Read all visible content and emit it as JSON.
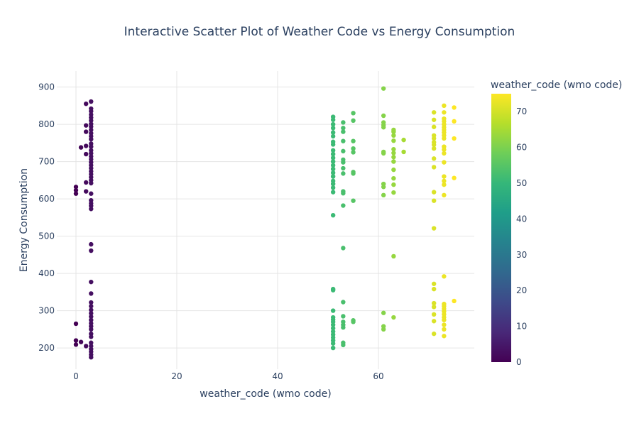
{
  "chart_data": {
    "type": "scatter",
    "title": "Interactive Scatter Plot of Weather Code vs Energy Consumption",
    "xlabel": "weather_code (wmo code)",
    "ylabel": "Energy Consumption",
    "xlim": [
      -3.8,
      79
    ],
    "ylim": [
      143,
      943
    ],
    "x_ticks": [
      0,
      20,
      40,
      60
    ],
    "y_ticks": [
      200,
      300,
      400,
      500,
      600,
      700,
      800,
      900
    ],
    "grid": true,
    "colorscale": "viridis",
    "colorbar": {
      "title": "weather_code (wmo code)",
      "range": [
        0,
        75
      ],
      "ticks": [
        0,
        10,
        20,
        30,
        40,
        50,
        60,
        70
      ]
    },
    "points": [
      {
        "x": 0,
        "y": 632
      },
      {
        "x": 0,
        "y": 623
      },
      {
        "x": 0,
        "y": 614
      },
      {
        "x": 0,
        "y": 265
      },
      {
        "x": 0,
        "y": 220
      },
      {
        "x": 0,
        "y": 209
      },
      {
        "x": 1,
        "y": 738
      },
      {
        "x": 1,
        "y": 216
      },
      {
        "x": 2,
        "y": 855
      },
      {
        "x": 2,
        "y": 797
      },
      {
        "x": 2,
        "y": 780
      },
      {
        "x": 2,
        "y": 742
      },
      {
        "x": 2,
        "y": 720
      },
      {
        "x": 2,
        "y": 644
      },
      {
        "x": 2,
        "y": 620
      },
      {
        "x": 2,
        "y": 205
      },
      {
        "x": 3,
        "y": 861
      },
      {
        "x": 3,
        "y": 842
      },
      {
        "x": 3,
        "y": 835
      },
      {
        "x": 3,
        "y": 826
      },
      {
        "x": 3,
        "y": 818
      },
      {
        "x": 3,
        "y": 810
      },
      {
        "x": 3,
        "y": 801
      },
      {
        "x": 3,
        "y": 794
      },
      {
        "x": 3,
        "y": 785
      },
      {
        "x": 3,
        "y": 776
      },
      {
        "x": 3,
        "y": 768
      },
      {
        "x": 3,
        "y": 760
      },
      {
        "x": 3,
        "y": 748
      },
      {
        "x": 3,
        "y": 740
      },
      {
        "x": 3,
        "y": 730
      },
      {
        "x": 3,
        "y": 722
      },
      {
        "x": 3,
        "y": 714
      },
      {
        "x": 3,
        "y": 706
      },
      {
        "x": 3,
        "y": 698
      },
      {
        "x": 3,
        "y": 690
      },
      {
        "x": 3,
        "y": 682
      },
      {
        "x": 3,
        "y": 674
      },
      {
        "x": 3,
        "y": 666
      },
      {
        "x": 3,
        "y": 658
      },
      {
        "x": 3,
        "y": 650
      },
      {
        "x": 3,
        "y": 642
      },
      {
        "x": 3,
        "y": 614
      },
      {
        "x": 3,
        "y": 596
      },
      {
        "x": 3,
        "y": 588
      },
      {
        "x": 3,
        "y": 581
      },
      {
        "x": 3,
        "y": 573
      },
      {
        "x": 3,
        "y": 478
      },
      {
        "x": 3,
        "y": 461
      },
      {
        "x": 3,
        "y": 377
      },
      {
        "x": 3,
        "y": 346
      },
      {
        "x": 3,
        "y": 322
      },
      {
        "x": 3,
        "y": 312
      },
      {
        "x": 3,
        "y": 302
      },
      {
        "x": 3,
        "y": 293
      },
      {
        "x": 3,
        "y": 284
      },
      {
        "x": 3,
        "y": 275
      },
      {
        "x": 3,
        "y": 266
      },
      {
        "x": 3,
        "y": 258
      },
      {
        "x": 3,
        "y": 250
      },
      {
        "x": 3,
        "y": 238
      },
      {
        "x": 3,
        "y": 230
      },
      {
        "x": 3,
        "y": 214
      },
      {
        "x": 3,
        "y": 205
      },
      {
        "x": 3,
        "y": 197
      },
      {
        "x": 3,
        "y": 190
      },
      {
        "x": 3,
        "y": 182
      },
      {
        "x": 3,
        "y": 175
      },
      {
        "x": 51,
        "y": 820
      },
      {
        "x": 51,
        "y": 812
      },
      {
        "x": 51,
        "y": 800
      },
      {
        "x": 51,
        "y": 790
      },
      {
        "x": 51,
        "y": 778
      },
      {
        "x": 51,
        "y": 768
      },
      {
        "x": 51,
        "y": 753
      },
      {
        "x": 51,
        "y": 746
      },
      {
        "x": 51,
        "y": 730
      },
      {
        "x": 51,
        "y": 720
      },
      {
        "x": 51,
        "y": 710
      },
      {
        "x": 51,
        "y": 700
      },
      {
        "x": 51,
        "y": 690
      },
      {
        "x": 51,
        "y": 680
      },
      {
        "x": 51,
        "y": 670
      },
      {
        "x": 51,
        "y": 660
      },
      {
        "x": 51,
        "y": 648
      },
      {
        "x": 51,
        "y": 640
      },
      {
        "x": 51,
        "y": 630
      },
      {
        "x": 51,
        "y": 618
      },
      {
        "x": 51,
        "y": 556
      },
      {
        "x": 51,
        "y": 358
      },
      {
        "x": 51,
        "y": 355
      },
      {
        "x": 51,
        "y": 300
      },
      {
        "x": 51,
        "y": 282
      },
      {
        "x": 51,
        "y": 276
      },
      {
        "x": 51,
        "y": 270
      },
      {
        "x": 51,
        "y": 262
      },
      {
        "x": 51,
        "y": 253
      },
      {
        "x": 51,
        "y": 244
      },
      {
        "x": 51,
        "y": 236
      },
      {
        "x": 51,
        "y": 228
      },
      {
        "x": 51,
        "y": 220
      },
      {
        "x": 51,
        "y": 212
      },
      {
        "x": 51,
        "y": 200
      },
      {
        "x": 53,
        "y": 805
      },
      {
        "x": 53,
        "y": 790
      },
      {
        "x": 53,
        "y": 780
      },
      {
        "x": 53,
        "y": 755
      },
      {
        "x": 53,
        "y": 728
      },
      {
        "x": 53,
        "y": 705
      },
      {
        "x": 53,
        "y": 698
      },
      {
        "x": 53,
        "y": 682
      },
      {
        "x": 53,
        "y": 668
      },
      {
        "x": 53,
        "y": 620
      },
      {
        "x": 53,
        "y": 615
      },
      {
        "x": 53,
        "y": 582
      },
      {
        "x": 53,
        "y": 468
      },
      {
        "x": 53,
        "y": 323
      },
      {
        "x": 53,
        "y": 285
      },
      {
        "x": 53,
        "y": 270
      },
      {
        "x": 53,
        "y": 262
      },
      {
        "x": 53,
        "y": 255
      },
      {
        "x": 53,
        "y": 214
      },
      {
        "x": 53,
        "y": 208
      },
      {
        "x": 55,
        "y": 830
      },
      {
        "x": 55,
        "y": 810
      },
      {
        "x": 55,
        "y": 755
      },
      {
        "x": 55,
        "y": 735
      },
      {
        "x": 55,
        "y": 725
      },
      {
        "x": 55,
        "y": 672
      },
      {
        "x": 55,
        "y": 668
      },
      {
        "x": 55,
        "y": 595
      },
      {
        "x": 55,
        "y": 274
      },
      {
        "x": 55,
        "y": 270
      },
      {
        "x": 61,
        "y": 896
      },
      {
        "x": 61,
        "y": 823
      },
      {
        "x": 61,
        "y": 805
      },
      {
        "x": 61,
        "y": 798
      },
      {
        "x": 61,
        "y": 792
      },
      {
        "x": 61,
        "y": 726
      },
      {
        "x": 61,
        "y": 722
      },
      {
        "x": 61,
        "y": 640
      },
      {
        "x": 61,
        "y": 632
      },
      {
        "x": 61,
        "y": 610
      },
      {
        "x": 61,
        "y": 294
      },
      {
        "x": 61,
        "y": 258
      },
      {
        "x": 61,
        "y": 250
      },
      {
        "x": 63,
        "y": 785
      },
      {
        "x": 63,
        "y": 780
      },
      {
        "x": 63,
        "y": 770
      },
      {
        "x": 63,
        "y": 756
      },
      {
        "x": 63,
        "y": 733
      },
      {
        "x": 63,
        "y": 723
      },
      {
        "x": 63,
        "y": 712
      },
      {
        "x": 63,
        "y": 700
      },
      {
        "x": 63,
        "y": 678
      },
      {
        "x": 63,
        "y": 655
      },
      {
        "x": 63,
        "y": 638
      },
      {
        "x": 63,
        "y": 617
      },
      {
        "x": 63,
        "y": 446
      },
      {
        "x": 63,
        "y": 282
      },
      {
        "x": 65,
        "y": 758
      },
      {
        "x": 65,
        "y": 726
      },
      {
        "x": 71,
        "y": 832
      },
      {
        "x": 71,
        "y": 812
      },
      {
        "x": 71,
        "y": 793
      },
      {
        "x": 71,
        "y": 770
      },
      {
        "x": 71,
        "y": 762
      },
      {
        "x": 71,
        "y": 752
      },
      {
        "x": 71,
        "y": 745
      },
      {
        "x": 71,
        "y": 735
      },
      {
        "x": 71,
        "y": 708
      },
      {
        "x": 71,
        "y": 685
      },
      {
        "x": 71,
        "y": 618
      },
      {
        "x": 71,
        "y": 595
      },
      {
        "x": 71,
        "y": 521
      },
      {
        "x": 71,
        "y": 372
      },
      {
        "x": 71,
        "y": 358
      },
      {
        "x": 71,
        "y": 320
      },
      {
        "x": 71,
        "y": 310
      },
      {
        "x": 71,
        "y": 290
      },
      {
        "x": 71,
        "y": 272
      },
      {
        "x": 71,
        "y": 238
      },
      {
        "x": 73,
        "y": 850
      },
      {
        "x": 73,
        "y": 832
      },
      {
        "x": 73,
        "y": 815
      },
      {
        "x": 73,
        "y": 808
      },
      {
        "x": 73,
        "y": 800
      },
      {
        "x": 73,
        "y": 792
      },
      {
        "x": 73,
        "y": 785
      },
      {
        "x": 73,
        "y": 778
      },
      {
        "x": 73,
        "y": 770
      },
      {
        "x": 73,
        "y": 762
      },
      {
        "x": 73,
        "y": 740
      },
      {
        "x": 73,
        "y": 732
      },
      {
        "x": 73,
        "y": 722
      },
      {
        "x": 73,
        "y": 698
      },
      {
        "x": 73,
        "y": 660
      },
      {
        "x": 73,
        "y": 648
      },
      {
        "x": 73,
        "y": 638
      },
      {
        "x": 73,
        "y": 610
      },
      {
        "x": 73,
        "y": 392
      },
      {
        "x": 73,
        "y": 318
      },
      {
        "x": 73,
        "y": 312
      },
      {
        "x": 73,
        "y": 305
      },
      {
        "x": 73,
        "y": 298
      },
      {
        "x": 73,
        "y": 290
      },
      {
        "x": 73,
        "y": 282
      },
      {
        "x": 73,
        "y": 275
      },
      {
        "x": 73,
        "y": 262
      },
      {
        "x": 73,
        "y": 250
      },
      {
        "x": 73,
        "y": 232
      },
      {
        "x": 75,
        "y": 845
      },
      {
        "x": 75,
        "y": 808
      },
      {
        "x": 75,
        "y": 762
      },
      {
        "x": 75,
        "y": 656
      },
      {
        "x": 75,
        "y": 326
      }
    ]
  }
}
